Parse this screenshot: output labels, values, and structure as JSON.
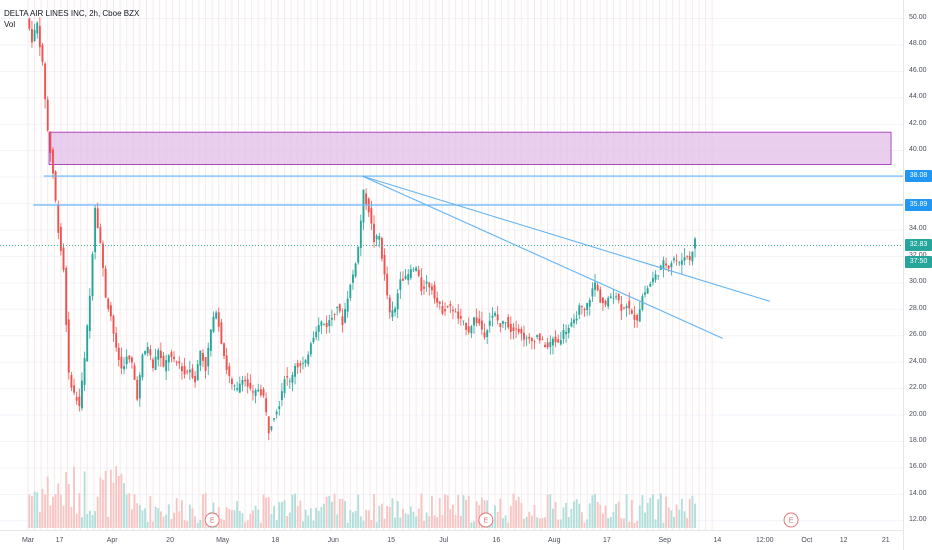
{
  "chart_data": {
    "type": "candlestick",
    "title": "DELTA AIR LINES INC, 2h, Cboe BZX",
    "volume_label": "Vol",
    "ylim": [
      11.3,
      51.4
    ],
    "xlim": [
      0,
      160
    ],
    "y_ticks": [
      "50.00",
      "48.00",
      "46.00",
      "44.00",
      "42.00",
      "40.00",
      "38.00",
      "36.00",
      "34.00",
      "32.00",
      "30.00",
      "28.00",
      "26.00",
      "24.00",
      "22.00",
      "20.00",
      "18.00",
      "16.00",
      "14.00",
      "12.00"
    ],
    "x_ticks": [
      {
        "label": "Mar",
        "x": 0
      },
      {
        "label": "17",
        "x": 6
      },
      {
        "label": "Apr",
        "x": 16
      },
      {
        "label": "20",
        "x": 27
      },
      {
        "label": "May",
        "x": 37
      },
      {
        "label": "18",
        "x": 47
      },
      {
        "label": "Jun",
        "x": 58
      },
      {
        "label": "15",
        "x": 69
      },
      {
        "label": "Jul",
        "x": 79
      },
      {
        "label": "16",
        "x": 89
      },
      {
        "label": "Aug",
        "x": 100
      },
      {
        "label": "17",
        "x": 110
      },
      {
        "label": "Sep",
        "x": 121
      },
      {
        "label": "14",
        "x": 131
      },
      {
        "label": "12:00",
        "x": 140
      },
      {
        "label": "Oct",
        "x": 148
      },
      {
        "label": "12",
        "x": 155
      },
      {
        "label": "21",
        "x": 163
      }
    ],
    "price_path": [
      [
        0,
        50.0
      ],
      [
        1,
        48.4
      ],
      [
        2,
        49.6
      ],
      [
        3,
        46.5
      ],
      [
        4,
        41.5
      ],
      [
        5,
        38.3
      ],
      [
        6,
        34.0
      ],
      [
        7,
        31.0
      ],
      [
        8,
        23.0
      ],
      [
        9,
        21.6
      ],
      [
        10,
        20.7
      ],
      [
        11,
        24.2
      ],
      [
        12,
        29.0
      ],
      [
        13,
        35.8
      ],
      [
        14,
        33.0
      ],
      [
        15,
        29.0
      ],
      [
        16,
        27.5
      ],
      [
        17,
        24.9
      ],
      [
        18,
        23.5
      ],
      [
        19,
        24.3
      ],
      [
        20,
        23.9
      ],
      [
        21,
        21.4
      ],
      [
        22,
        24.4
      ],
      [
        23,
        25.2
      ],
      [
        24,
        23.6
      ],
      [
        25,
        25.0
      ],
      [
        26,
        23.5
      ],
      [
        27,
        24.6
      ],
      [
        28,
        24.0
      ],
      [
        29,
        23.9
      ],
      [
        30,
        23.1
      ],
      [
        31,
        23.5
      ],
      [
        32,
        22.6
      ],
      [
        33,
        24.9
      ],
      [
        34,
        23.5
      ],
      [
        35,
        26.4
      ],
      [
        36,
        28.0
      ],
      [
        37,
        25.6
      ],
      [
        38,
        23.5
      ],
      [
        39,
        22.2
      ],
      [
        40,
        21.9
      ],
      [
        41,
        22.9
      ],
      [
        42,
        22.2
      ],
      [
        43,
        21.5
      ],
      [
        44,
        22.0
      ],
      [
        45,
        21.4
      ],
      [
        46,
        18.8
      ],
      [
        47,
        20.0
      ],
      [
        48,
        20.9
      ],
      [
        49,
        22.9
      ],
      [
        50,
        22.5
      ],
      [
        51,
        23.8
      ],
      [
        52,
        23.7
      ],
      [
        53,
        23.9
      ],
      [
        54,
        25.6
      ],
      [
        55,
        26.5
      ],
      [
        56,
        27.0
      ],
      [
        57,
        26.8
      ],
      [
        58,
        27.4
      ],
      [
        59,
        28.3
      ],
      [
        60,
        27.0
      ],
      [
        61,
        29.0
      ],
      [
        62,
        30.6
      ],
      [
        63,
        32.7
      ],
      [
        64,
        36.8
      ],
      [
        65,
        35.5
      ],
      [
        66,
        33.2
      ],
      [
        67,
        33.5
      ],
      [
        68,
        30.5
      ],
      [
        69,
        27.6
      ],
      [
        70,
        28.0
      ],
      [
        71,
        30.5
      ],
      [
        72,
        30.3
      ],
      [
        73,
        30.9
      ],
      [
        74,
        31.1
      ],
      [
        75,
        29.5
      ],
      [
        76,
        30.0
      ],
      [
        77,
        29.6
      ],
      [
        78,
        28.5
      ],
      [
        79,
        27.9
      ],
      [
        80,
        28.2
      ],
      [
        81,
        28.0
      ],
      [
        82,
        27.3
      ],
      [
        83,
        26.9
      ],
      [
        84,
        26.4
      ],
      [
        85,
        27.3
      ],
      [
        86,
        26.9
      ],
      [
        87,
        26.1
      ],
      [
        88,
        27.2
      ],
      [
        89,
        27.6
      ],
      [
        90,
        26.7
      ],
      [
        91,
        27.2
      ],
      [
        92,
        26.4
      ],
      [
        93,
        26.7
      ],
      [
        94,
        26.1
      ],
      [
        95,
        25.7
      ],
      [
        96,
        25.6
      ],
      [
        97,
        26.0
      ],
      [
        98,
        25.5
      ],
      [
        99,
        25.1
      ],
      [
        100,
        25.7
      ],
      [
        101,
        25.5
      ],
      [
        102,
        26.3
      ],
      [
        103,
        26.6
      ],
      [
        104,
        27.0
      ],
      [
        105,
        28.1
      ],
      [
        106,
        27.8
      ],
      [
        107,
        28.9
      ],
      [
        108,
        30.0
      ],
      [
        109,
        28.7
      ],
      [
        110,
        28.3
      ],
      [
        111,
        29.0
      ],
      [
        112,
        29.1
      ],
      [
        113,
        28.1
      ],
      [
        114,
        28.4
      ],
      [
        115,
        27.5
      ],
      [
        116,
        27.3
      ],
      [
        117,
        29.0
      ],
      [
        118,
        29.6
      ],
      [
        119,
        30.3
      ],
      [
        120,
        30.8
      ],
      [
        121,
        31.5
      ],
      [
        122,
        31.3
      ],
      [
        123,
        31.9
      ],
      [
        124,
        31.4
      ],
      [
        125,
        32.1
      ],
      [
        126,
        31.8
      ],
      [
        127,
        33.2
      ]
    ],
    "candles": {
      "count": 254,
      "color_up": "#26a69a",
      "color_down": "#ef5350"
    },
    "volume": {
      "max_fraction": 0.12,
      "color_up": "#b2dfdb",
      "color_down": "#f7c6c4"
    },
    "zone": {
      "x1": 4,
      "x2": 164,
      "y1": 38.95,
      "y2": 41.4,
      "fill": "#e1bee7",
      "stroke": "#9c27b0"
    },
    "horizontal_lines": [
      {
        "price": 38.08,
        "x1": 3,
        "label": "38.08",
        "color": "#2196f3",
        "line_color": "#64b5f6"
      },
      {
        "price": 35.89,
        "x1": 1,
        "label": "35.89",
        "color": "#2196f3",
        "line_color": "#64b5f6"
      }
    ],
    "trend_lines": [
      {
        "x1": 63.5,
        "y1": 38.08,
        "x2": 141,
        "y2": 28.6,
        "color": "#64b5f6"
      },
      {
        "x1": 63.5,
        "y1": 38.08,
        "x2": 132,
        "y2": 25.8,
        "color": "#64b5f6"
      }
    ],
    "price_tags": [
      {
        "label": "32.83",
        "price": 32.83,
        "color": "#26a69a"
      },
      {
        "label": "37:50",
        "price": 31.6,
        "color": "#26a69a"
      }
    ],
    "last_price_line": {
      "price": 32.83,
      "color": "#26a69a"
    },
    "earnings_markers": [
      {
        "label": "E",
        "x": 35
      },
      {
        "label": "E",
        "x": 87
      },
      {
        "label": "E",
        "x": 145
      }
    ],
    "gridlines": true,
    "grid_color": "#f0f3fa"
  }
}
